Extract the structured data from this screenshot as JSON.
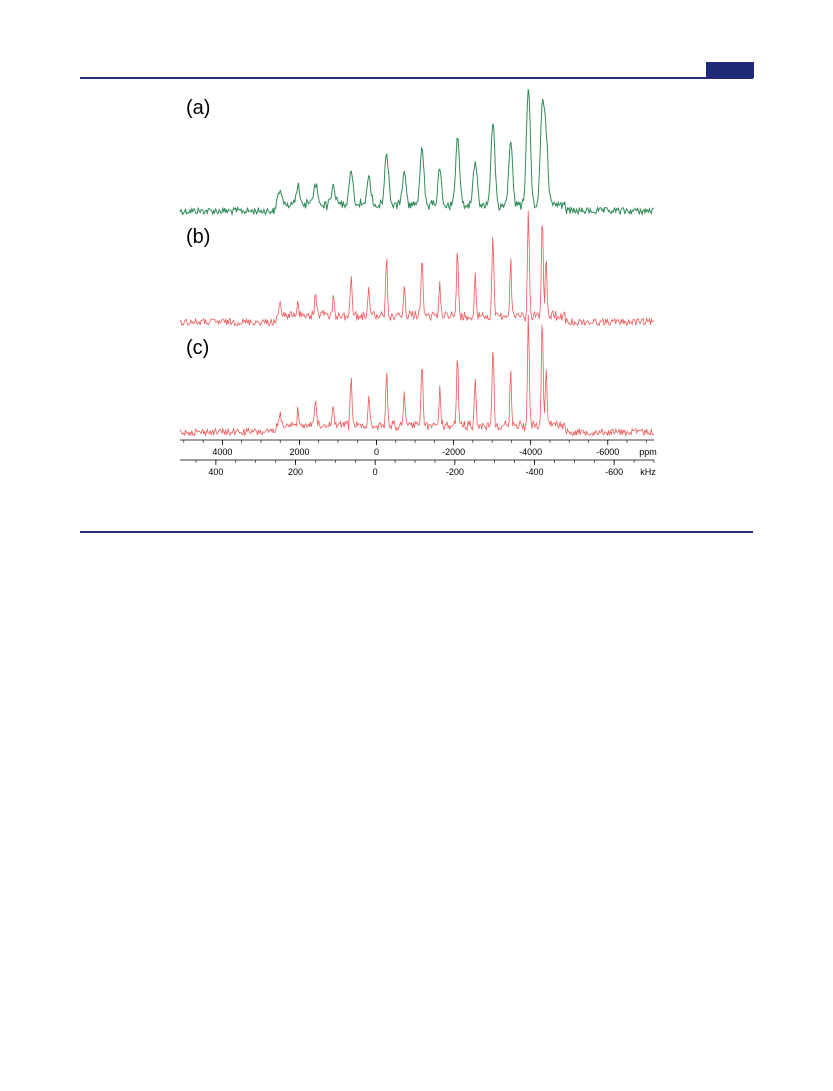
{
  "page": {
    "rule_color": "#2a2f7a",
    "tab_color": "#1f2a78"
  },
  "chart_data": {
    "type": "line",
    "title": "",
    "colors": {
      "a": "#2e8b57",
      "b": "#f05a5a",
      "c": "#f05a5a"
    },
    "panels": [
      {
        "label": "(a)",
        "color": "#2e8b57"
      },
      {
        "label": "(b)",
        "color": "#f05a5a"
      },
      {
        "label": "(c)",
        "color": "#f05a5a"
      }
    ],
    "spectral_axis": {
      "x_center_ppm": -1900,
      "ppm_range": [
        5100,
        -7200
      ],
      "sideband_spacing_ppm": 920,
      "envelope_span_ppm": [
        2600,
        -4900
      ]
    },
    "series": [
      {
        "name": "(a)",
        "sideband_heights": [
          {
            "ppm": 2500,
            "height": 0.1
          },
          {
            "ppm": 1580,
            "height": 0.18
          },
          {
            "ppm": 660,
            "height": 0.27
          },
          {
            "ppm": -260,
            "height": 0.43
          },
          {
            "ppm": -1180,
            "height": 0.46
          },
          {
            "ppm": -2100,
            "height": 0.56
          },
          {
            "ppm": -3020,
            "height": 0.67
          },
          {
            "ppm": -3940,
            "height": 1.0
          },
          {
            "ppm": -4300,
            "height": 0.82
          }
        ]
      },
      {
        "name": "(b)",
        "sideband_heights": [
          {
            "ppm": 2500,
            "height": 0.1
          },
          {
            "ppm": 1580,
            "height": 0.22
          },
          {
            "ppm": 660,
            "height": 0.38
          },
          {
            "ppm": -260,
            "height": 0.52
          },
          {
            "ppm": -1180,
            "height": 0.56
          },
          {
            "ppm": -2100,
            "height": 0.64
          },
          {
            "ppm": -3020,
            "height": 0.74
          },
          {
            "ppm": -3940,
            "height": 1.0
          },
          {
            "ppm": -4300,
            "height": 0.92
          }
        ]
      },
      {
        "name": "(c)",
        "sideband_heights": [
          {
            "ppm": 2500,
            "height": 0.12
          },
          {
            "ppm": 1580,
            "height": 0.25
          },
          {
            "ppm": 660,
            "height": 0.42
          },
          {
            "ppm": -260,
            "height": 0.5
          },
          {
            "ppm": -1180,
            "height": 0.56
          },
          {
            "ppm": -2100,
            "height": 0.64
          },
          {
            "ppm": -3020,
            "height": 0.76
          },
          {
            "ppm": -3940,
            "height": 1.0
          },
          {
            "ppm": -4300,
            "height": 0.98
          }
        ]
      }
    ],
    "axes": [
      {
        "unit": "ppm",
        "ticks": [
          {
            "value": 4000,
            "label": "4000"
          },
          {
            "value": 2000,
            "label": "2000"
          },
          {
            "value": 0,
            "label": "0"
          },
          {
            "value": -2000,
            "label": "-2000"
          },
          {
            "value": -4000,
            "label": "-4000"
          },
          {
            "value": -6000,
            "label": "-6000"
          }
        ],
        "minor_step": 500,
        "range": [
          5100,
          -7200
        ]
      },
      {
        "unit": "kHz",
        "ticks": [
          {
            "value": 400,
            "label": "400"
          },
          {
            "value": 200,
            "label": "200"
          },
          {
            "value": 0,
            "label": "0"
          },
          {
            "value": -200,
            "label": "-200"
          },
          {
            "value": -400,
            "label": "-400"
          },
          {
            "value": -600,
            "label": "-600"
          }
        ],
        "minor_step": 50,
        "range": [
          490,
          -700
        ]
      }
    ]
  }
}
